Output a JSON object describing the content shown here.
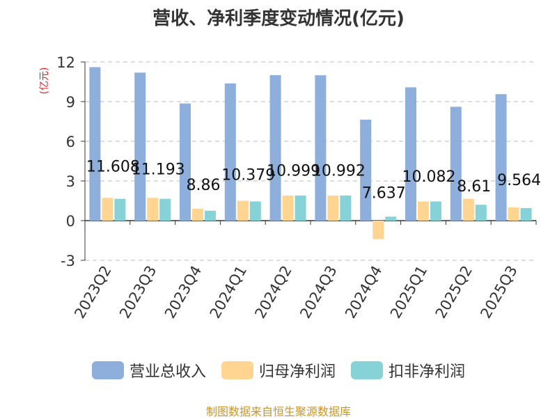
{
  "chart_data": {
    "type": "bar",
    "title": "营收、净利季度变动情况(亿元)",
    "ylabel": "(亿元)",
    "ylim": [
      -3,
      12
    ],
    "yticks": [
      -3,
      0,
      3,
      6,
      9,
      12
    ],
    "grid": true,
    "legend_position": "bottom",
    "categories": [
      "2023Q2",
      "2023Q3",
      "2023Q4",
      "2024Q1",
      "2024Q2",
      "2024Q3",
      "2024Q4",
      "2025Q1",
      "2025Q2",
      "2025Q3"
    ],
    "series": [
      {
        "name": "营业总收入",
        "color": "#8eaedc",
        "values": [
          11.608,
          11.193,
          8.86,
          10.379,
          10.999,
          10.992,
          7.637,
          10.082,
          8.61,
          9.564
        ],
        "show_labels": true
      },
      {
        "name": "归母净利润",
        "color": "#ffd591",
        "values": [
          1.72,
          1.72,
          0.9,
          1.5,
          1.9,
          1.9,
          -1.4,
          1.45,
          1.65,
          1.0
        ],
        "show_labels": false
      },
      {
        "name": "扣非净利润",
        "color": "#86d2d6",
        "values": [
          1.65,
          1.65,
          0.75,
          1.45,
          1.9,
          1.9,
          0.3,
          1.45,
          1.2,
          0.95
        ],
        "show_labels": false
      }
    ]
  },
  "source": "制图数据来自恒生聚源数据库"
}
